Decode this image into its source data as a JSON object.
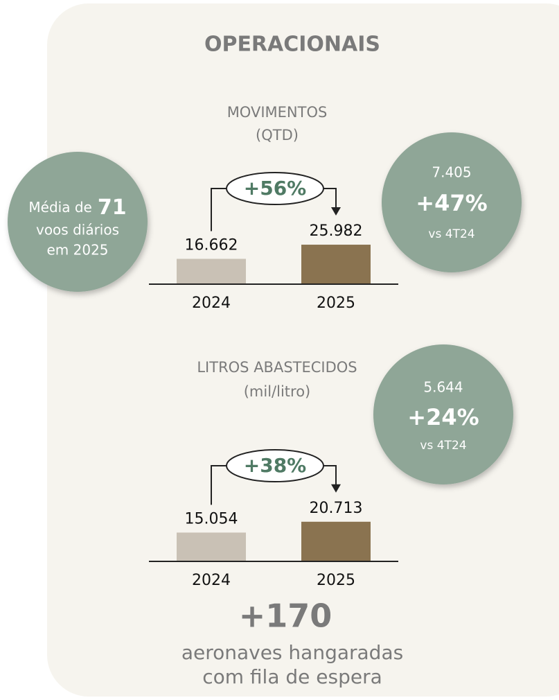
{
  "title": "OPERACIONAIS",
  "chart_data": [
    {
      "type": "bar",
      "title": "MOVIMENTOS",
      "subtitle": "(QTD)",
      "categories": [
        "2024",
        "2025"
      ],
      "values": [
        16662,
        25982
      ],
      "value_labels": [
        "16.662",
        "25.982"
      ],
      "colors": [
        "#c9c1b5",
        "#8a7350"
      ],
      "ylim": [
        0,
        26000
      ],
      "change_label": "+56%"
    },
    {
      "type": "bar",
      "title": "LITROS ABASTECIDOS",
      "subtitle": "(mil/litro)",
      "categories": [
        "2024",
        "2025"
      ],
      "values": [
        15054,
        20713
      ],
      "value_labels": [
        "15.054",
        "20.713"
      ],
      "colors": [
        "#c9c1b5",
        "#8a7350"
      ],
      "ylim": [
        0,
        21000
      ],
      "change_label": "+38%"
    }
  ],
  "bubbles": [
    {
      "lines": [
        "Média de",
        "71",
        "voos diários",
        "em 2025"
      ]
    },
    {
      "lines": [
        "7.405",
        "+47%",
        "vs 4T24"
      ]
    },
    {
      "lines": [
        "5.644",
        "+24%",
        "vs 4T24"
      ]
    }
  ],
  "footer": {
    "headline": "+170",
    "lines": [
      "aeronaves hangaradas",
      "com fila de espera"
    ]
  }
}
